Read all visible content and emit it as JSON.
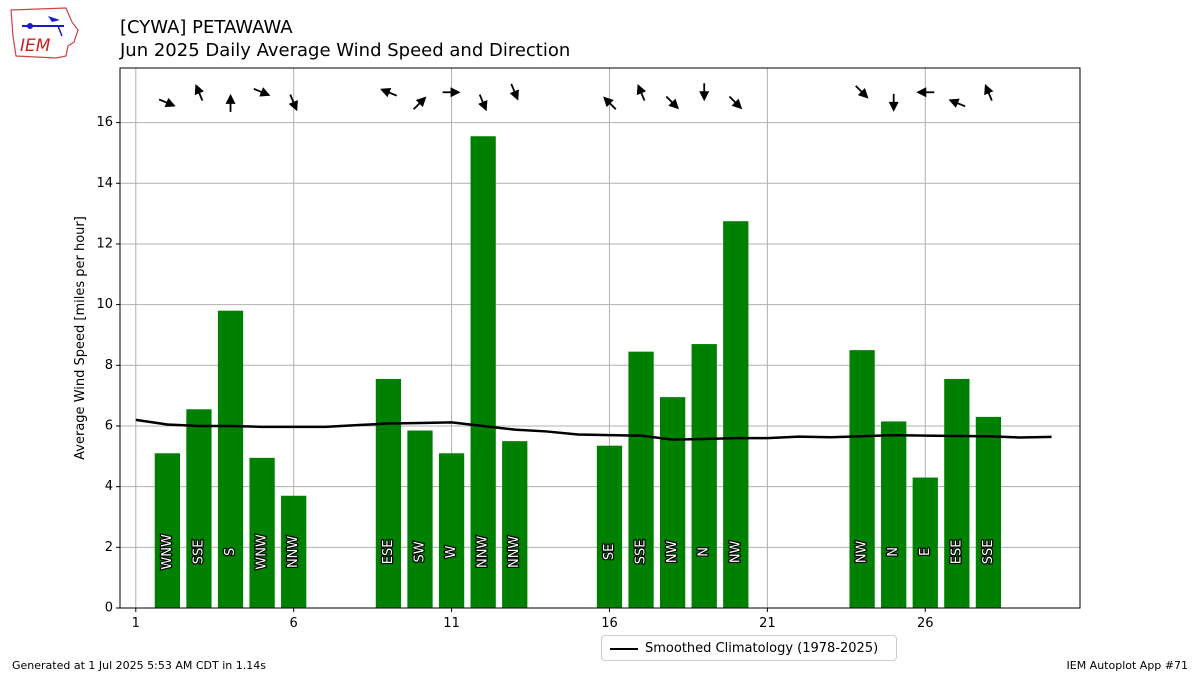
{
  "header": {
    "logo_text": "IEM",
    "title_line1": "[CYWA] PETAWAWA",
    "title_line2": "Jun 2025 Daily Average Wind Speed and Direction"
  },
  "footer": {
    "left": "Generated at 1 Jul 2025 5:53 AM CDT in 1.14s",
    "right": "IEM Autoplot App #71"
  },
  "legend": {
    "label": "Smoothed Climatology (1978-2025)"
  },
  "colors": {
    "bar": "#008000",
    "climatology": "#000000",
    "grid": "#b0b0b0"
  },
  "chart_data": {
    "type": "bar",
    "title": "[CYWA] PETAWAWA",
    "subtitle": "Jun 2025 Daily Average Wind Speed and Direction",
    "xlabel": "",
    "ylabel": "Average Wind Speed [miles per hour]",
    "xlim": [
      0.5,
      30.9
    ],
    "ylim": [
      0,
      17.8
    ],
    "xticks": [
      1,
      6,
      11,
      16,
      21,
      26
    ],
    "yticks": [
      0,
      2,
      4,
      6,
      8,
      10,
      12,
      14,
      16
    ],
    "grid": true,
    "legend_position": "bottom-center",
    "days": [
      {
        "day": 2,
        "value": 5.1,
        "dir": "WNW",
        "deg": 292.5
      },
      {
        "day": 3,
        "value": 6.55,
        "dir": "SSE",
        "deg": 157.5
      },
      {
        "day": 4,
        "value": 9.8,
        "dir": "S",
        "deg": 180
      },
      {
        "day": 5,
        "value": 4.95,
        "dir": "WNW",
        "deg": 292.5
      },
      {
        "day": 6,
        "value": 3.7,
        "dir": "NNW",
        "deg": 337.5
      },
      {
        "day": 9,
        "value": 7.55,
        "dir": "ESE",
        "deg": 112.5
      },
      {
        "day": 10,
        "value": 5.85,
        "dir": "SW",
        "deg": 225
      },
      {
        "day": 11,
        "value": 5.1,
        "dir": "W",
        "deg": 270
      },
      {
        "day": 12,
        "value": 15.55,
        "dir": "NNW",
        "deg": 337.5
      },
      {
        "day": 13,
        "value": 5.5,
        "dir": "NNW",
        "deg": 337.5
      },
      {
        "day": 16,
        "value": 5.35,
        "dir": "SE",
        "deg": 135
      },
      {
        "day": 17,
        "value": 8.45,
        "dir": "SSE",
        "deg": 157.5
      },
      {
        "day": 18,
        "value": 6.95,
        "dir": "NW",
        "deg": 315
      },
      {
        "day": 19,
        "value": 8.7,
        "dir": "N",
        "deg": 0
      },
      {
        "day": 20,
        "value": 12.75,
        "dir": "NW",
        "deg": 315
      },
      {
        "day": 24,
        "value": 8.5,
        "dir": "NW",
        "deg": 315
      },
      {
        "day": 25,
        "value": 6.15,
        "dir": "N",
        "deg": 0
      },
      {
        "day": 26,
        "value": 4.3,
        "dir": "E",
        "deg": 90
      },
      {
        "day": 27,
        "value": 7.55,
        "dir": "ESE",
        "deg": 112.5
      },
      {
        "day": 28,
        "value": 6.3,
        "dir": "SSE",
        "deg": 157.5
      }
    ],
    "series": [
      {
        "name": "Smoothed Climatology (1978-2025)",
        "x": [
          1,
          2,
          3,
          4,
          5,
          6,
          7,
          8,
          9,
          10,
          11,
          12,
          13,
          14,
          15,
          16,
          17,
          18,
          19,
          20,
          21,
          22,
          23,
          24,
          25,
          26,
          27,
          28,
          29,
          30
        ],
        "values": [
          6.2,
          6.05,
          6.0,
          6.0,
          5.97,
          5.97,
          5.97,
          6.03,
          6.08,
          6.1,
          6.12,
          6.0,
          5.88,
          5.82,
          5.72,
          5.7,
          5.68,
          5.55,
          5.57,
          5.6,
          5.6,
          5.65,
          5.63,
          5.66,
          5.7,
          5.68,
          5.67,
          5.66,
          5.62,
          5.64
        ]
      }
    ]
  }
}
